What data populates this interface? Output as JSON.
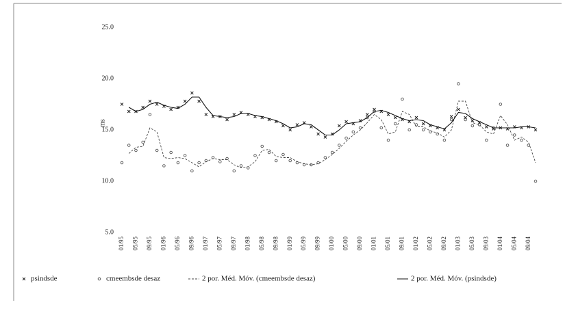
{
  "chart_data": {
    "type": "line",
    "ylabel": "ms",
    "ylim": [
      5,
      25
    ],
    "yticks": [
      {
        "value": 5,
        "label": "5.0"
      },
      {
        "value": 10,
        "label": "10.0"
      },
      {
        "value": 15,
        "label": "15.0"
      },
      {
        "value": 20,
        "label": "20.0"
      },
      {
        "value": 25,
        "label": "25.0"
      }
    ],
    "categories": [
      "01/95",
      null,
      "05/95",
      null,
      "09/95",
      null,
      "01/96",
      null,
      "05/96",
      null,
      "09/96",
      null,
      "01/97",
      null,
      "05/97",
      null,
      "09/97",
      null,
      "01/98",
      null,
      "05/98",
      null,
      "09/98",
      null,
      "01/99",
      null,
      "05/99",
      null,
      "09/99",
      null,
      "01/00",
      null,
      "05/00",
      null,
      "09/00",
      null,
      "01/01",
      null,
      "05/01",
      null,
      "09/01",
      null,
      "01/02",
      null,
      "05/02",
      null,
      "09/02",
      null,
      "01/03",
      null,
      "05/03",
      null,
      "09/03",
      null,
      "01/04",
      null,
      "05/04",
      null,
      "09/04",
      null
    ],
    "series": [
      {
        "name": "psindsde",
        "color": "#222222",
        "marker": "x",
        "values": [
          17.5,
          16.8,
          16.8,
          17.2,
          17.8,
          17.5,
          17.3,
          17.0,
          17.2,
          17.8,
          18.6,
          17.8,
          16.5,
          16.3,
          16.3,
          16.0,
          16.5,
          16.7,
          16.5,
          16.3,
          16.2,
          16.0,
          15.8,
          15.4,
          15.0,
          15.5,
          15.7,
          15.3,
          14.6,
          14.3,
          14.6,
          15.4,
          15.8,
          15.6,
          15.9,
          16.5,
          17.0,
          16.8,
          16.5,
          16.2,
          16.0,
          15.8,
          16.2,
          15.6,
          15.4,
          15.2,
          15.0,
          16.3,
          17.0,
          16.2,
          15.9,
          15.7,
          15.3,
          15.1,
          15.2,
          15.1,
          15.3,
          15.2,
          15.3,
          15.0
        ]
      },
      {
        "name": "cmeembsde desaz",
        "color": "#555555",
        "marker": "circle",
        "values": [
          11.8,
          13.5,
          13.0,
          13.8,
          16.5,
          13.0,
          11.5,
          12.8,
          11.8,
          12.5,
          11.0,
          11.8,
          12.0,
          12.3,
          11.9,
          12.2,
          11.0,
          11.5,
          11.3,
          12.5,
          13.4,
          12.8,
          12.0,
          12.6,
          12.0,
          11.8,
          11.6,
          11.6,
          11.8,
          12.3,
          12.8,
          13.5,
          14.2,
          14.8,
          15.2,
          16.2,
          16.8,
          15.2,
          14.0,
          15.6,
          18.0,
          15.0,
          15.5,
          15.0,
          14.8,
          14.6,
          14.0,
          16.0,
          19.5,
          16.0,
          15.4,
          15.5,
          14.0,
          15.2,
          17.5,
          13.5,
          14.5,
          14.0,
          13.5,
          10.0
        ]
      },
      {
        "name": "2 por. Méd. Móv. (cmeembsde desaz)",
        "color": "#444444",
        "line": "dashed",
        "values": [
          null,
          12.7,
          13.3,
          13.4,
          15.2,
          14.8,
          12.3,
          12.2,
          12.3,
          12.2,
          11.8,
          11.4,
          11.9,
          12.2,
          12.1,
          12.1,
          11.6,
          11.3,
          11.4,
          11.9,
          13.0,
          13.1,
          12.4,
          12.3,
          12.3,
          11.9,
          11.7,
          11.6,
          11.7,
          12.1,
          12.6,
          13.2,
          13.9,
          14.5,
          15.0,
          15.7,
          16.5,
          16.0,
          14.6,
          14.8,
          16.8,
          16.5,
          15.3,
          15.3,
          14.9,
          14.7,
          14.3,
          15.0,
          17.8,
          17.8,
          15.7,
          15.5,
          14.8,
          14.6,
          16.4,
          15.5,
          14.0,
          14.3,
          13.8,
          11.8
        ]
      },
      {
        "name": "2 por. Méd. Móv. (psindsde)",
        "color": "#111111",
        "line": "solid",
        "values": [
          null,
          17.2,
          16.8,
          17.0,
          17.5,
          17.7,
          17.4,
          17.2,
          17.1,
          17.5,
          18.2,
          18.2,
          17.2,
          16.4,
          16.3,
          16.2,
          16.3,
          16.6,
          16.6,
          16.4,
          16.3,
          16.1,
          15.9,
          15.6,
          15.2,
          15.3,
          15.6,
          15.5,
          15.0,
          14.5,
          14.5,
          15.0,
          15.6,
          15.7,
          15.8,
          16.2,
          16.8,
          16.9,
          16.7,
          16.4,
          16.1,
          15.9,
          16.0,
          15.9,
          15.5,
          15.3,
          15.1,
          15.7,
          16.7,
          16.6,
          16.1,
          15.8,
          15.5,
          15.2,
          15.2,
          15.2,
          15.2,
          15.3,
          15.3,
          15.2
        ]
      }
    ]
  }
}
